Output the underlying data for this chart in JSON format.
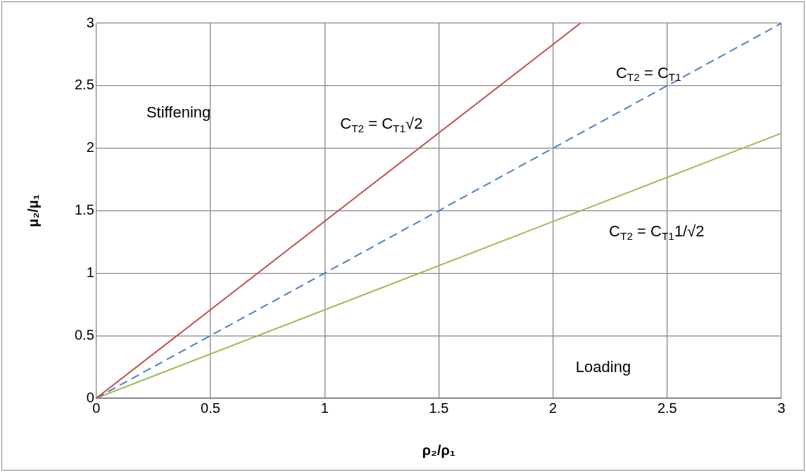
{
  "chart_data": {
    "type": "line",
    "xlabel": "ρ₂/ρ₁",
    "ylabel": "μ₂/μ₁",
    "series": [
      {
        "name": "C$_{T2}$ = C$_{T1}$√2",
        "color": "#c0504d",
        "x": [
          0,
          2.12
        ],
        "values": [
          0,
          3
        ],
        "line_style": "solid"
      },
      {
        "name": "C$_{T2}$ = C$_{T1}$",
        "color": "#4f81bd",
        "x": [
          0,
          3
        ],
        "values": [
          0,
          3
        ],
        "line_style": "dashed"
      },
      {
        "name": "C$_{T2}$ = C$_{T1}$1/√2",
        "color": "#9bbb59",
        "x": [
          0,
          3
        ],
        "values": [
          0,
          2.12
        ],
        "line_style": "solid"
      }
    ],
    "xlim": [
      0,
      3
    ],
    "xticks": [
      0,
      0.5,
      1,
      1.5,
      2,
      2.5,
      3
    ],
    "ylim": [
      0,
      3
    ],
    "yticks": [
      0,
      0.5,
      1,
      1.5,
      2,
      2.5,
      3
    ],
    "grid": true,
    "legend": false,
    "marker": "none",
    "annotations": [
      "Stiffening",
      "Loading"
    ]
  }
}
